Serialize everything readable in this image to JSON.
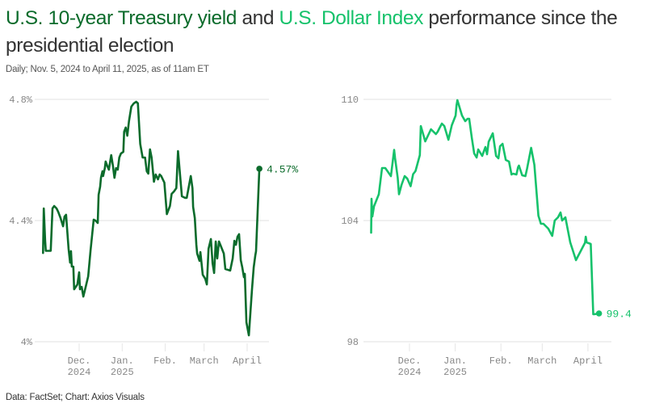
{
  "header": {
    "title_part1": "U.S. 10-year Treasury yield",
    "title_part2": " and ",
    "title_part3": "U.S. Dollar Index",
    "title_part4": " performance since the presidential election",
    "subtitle": "Daily; Nov. 5, 2024 to April 11, 2025, as of 11am ET"
  },
  "footer": {
    "source": "Data: FactSet; Chart: Axios Visuals"
  },
  "colors": {
    "treasury": "#0b6b2b",
    "dollar": "#16c26b",
    "grid": "#e6e6e6",
    "tick_text": "#888888"
  },
  "chart_data": [
    {
      "type": "line",
      "title": "U.S. 10-year Treasury yield",
      "xlabel": "",
      "ylabel": "",
      "x_unit": "days since Nov. 5, 2024",
      "xlim": [
        0,
        157
      ],
      "ylim": [
        4.0,
        4.8
      ],
      "yticks": [
        {
          "value": 4.8,
          "label": "4.8%"
        },
        {
          "value": 4.4,
          "label": "4.4%"
        },
        {
          "value": 4.0,
          "label": "4%"
        }
      ],
      "xticks": [
        {
          "value": 26,
          "label1": "Dec.",
          "label2": "2024"
        },
        {
          "value": 57,
          "label1": "Jan.",
          "label2": "2025"
        },
        {
          "value": 88,
          "label1": "Feb.",
          "label2": ""
        },
        {
          "value": 116,
          "label1": "March",
          "label2": ""
        },
        {
          "value": 147,
          "label1": "April",
          "label2": ""
        }
      ],
      "grid": true,
      "end_label": "4.57%",
      "series": [
        {
          "name": "10-year Treasury yield",
          "x": [
            0,
            0.5,
            1.5,
            2,
            5.5,
            6.8,
            8,
            9.7,
            10.9,
            12.6,
            14.4,
            15.5,
            16.6,
            18.4,
            19.5,
            20.1,
            20.7,
            21.8,
            22.4,
            24.7,
            26,
            26.6,
            27.8,
            29,
            30.7,
            32.5,
            34.2,
            36.5,
            37.7,
            39.4,
            40,
            41.1,
            41.7,
            42.8,
            43.3,
            44.5,
            45.1,
            46.2,
            47.4,
            49.1,
            50.3,
            51.4,
            52.6,
            53.8,
            54.9,
            56.1,
            57.8,
            58.4,
            59.5,
            60.7,
            61.9,
            63.6,
            65.4,
            67.1,
            68.3,
            70,
            71.7,
            72.9,
            73.5,
            74.7,
            75.8,
            77,
            78.2,
            79.9,
            81.1,
            82.8,
            84,
            85.1,
            87.4,
            89.2,
            91.4,
            92.6,
            94.3,
            96,
            97.2,
            100,
            102.3,
            103.5,
            106.4,
            107.6,
            108.1,
            109.3,
            110.4,
            111,
            112.7,
            113.3,
            115,
            116.8,
            118,
            119.2,
            120.9,
            122.1,
            123.2,
            124.4,
            125.5,
            126.7,
            128.4,
            130.2,
            131.3,
            134.8,
            136.6,
            137.8,
            138.9,
            140.1,
            141.2,
            142.4,
            143.5,
            144.7,
            145.3,
            146.5,
            148.2,
            149.4,
            150.5,
            151.7,
            152.9,
            153.4,
            155.8
          ],
          "values": [
            4.293,
            4.44,
            4.333,
            4.3,
            4.3,
            4.44,
            4.448,
            4.44,
            4.429,
            4.408,
            4.381,
            4.413,
            4.419,
            4.307,
            4.261,
            4.299,
            4.248,
            4.248,
            4.173,
            4.189,
            4.229,
            4.173,
            4.181,
            4.149,
            4.181,
            4.216,
            4.301,
            4.403,
            4.4,
            4.392,
            4.485,
            4.512,
            4.541,
            4.563,
            4.547,
            4.573,
            4.595,
            4.581,
            4.568,
            4.616,
            4.581,
            4.541,
            4.573,
            4.568,
            4.608,
            4.621,
            4.627,
            4.693,
            4.707,
            4.68,
            4.728,
            4.776,
            4.787,
            4.792,
            4.787,
            4.653,
            4.608,
            4.608,
            4.608,
            4.563,
            4.555,
            4.635,
            4.608,
            4.528,
            4.552,
            4.536,
            4.552,
            4.547,
            4.525,
            4.421,
            4.448,
            4.488,
            4.496,
            4.507,
            4.629,
            4.48,
            4.475,
            4.475,
            4.547,
            4.507,
            4.445,
            4.408,
            4.32,
            4.291,
            4.267,
            4.296,
            4.221,
            4.208,
            4.189,
            4.307,
            4.339,
            4.259,
            4.227,
            4.331,
            4.275,
            4.331,
            4.312,
            4.291,
            4.24,
            4.235,
            4.275,
            4.333,
            4.32,
            4.347,
            4.355,
            4.269,
            4.245,
            4.213,
            4.224,
            4.064,
            4.021,
            4.099,
            4.173,
            4.245,
            4.285,
            4.299,
            4.571
          ]
        }
      ]
    },
    {
      "type": "line",
      "title": "U.S. Dollar Index",
      "xlabel": "",
      "ylabel": "",
      "x_unit": "days since Nov. 5, 2024",
      "xlim": [
        0,
        157
      ],
      "ylim": [
        98,
        110
      ],
      "yticks": [
        {
          "value": 110,
          "label": "110"
        },
        {
          "value": 104,
          "label": "104"
        },
        {
          "value": 98,
          "label": "98"
        }
      ],
      "xticks": [
        {
          "value": 26,
          "label1": "Dec.",
          "label2": "2024"
        },
        {
          "value": 57,
          "label1": "Jan.",
          "label2": "2025"
        },
        {
          "value": 88,
          "label1": "Feb.",
          "label2": ""
        },
        {
          "value": 116,
          "label1": "March",
          "label2": ""
        },
        {
          "value": 147,
          "label1": "April",
          "label2": ""
        }
      ],
      "grid": true,
      "end_label": "99.4",
      "series": [
        {
          "name": "U.S. Dollar Index",
          "x": [
            0,
            0.3,
            0.8,
            1.9,
            5.2,
            7.4,
            9.6,
            13.4,
            15.6,
            16.2,
            18,
            18.9,
            20.6,
            22.7,
            24.5,
            26.8,
            28.5,
            29.6,
            30.1,
            33,
            33.7,
            36.7,
            40.6,
            43.9,
            45.1,
            46.2,
            48,
            49.6,
            52.4,
            54.7,
            57.3,
            57.9,
            58.5,
            61.6,
            63.8,
            65.4,
            66.5,
            68.3,
            69.9,
            71.5,
            72.6,
            75.3,
            77.5,
            78.6,
            79.7,
            82.5,
            84.7,
            86.3,
            87.4,
            89.1,
            91.3,
            93.5,
            95.2,
            96.3,
            98.5,
            99.6,
            100.2,
            102.4,
            104.6,
            105.7,
            108.5,
            110.7,
            113.4,
            115.1,
            116.8,
            120.1,
            122.8,
            124.5,
            126.7,
            128.4,
            129.5,
            131.7,
            135,
            138.9,
            145,
            145.5,
            146.1,
            148.9,
            150.6,
            151.2,
            154.5
          ],
          "values": [
            103.4,
            105.08,
            104.2,
            104.7,
            105.3,
            106.6,
            106.6,
            106.2,
            107.5,
            107.1,
            106.12,
            105.3,
            105.76,
            106.2,
            106.08,
            105.7,
            106.3,
            106.4,
            106.46,
            107.24,
            108.68,
            107.92,
            108.52,
            108.28,
            108.4,
            108.56,
            108.8,
            108.68,
            108.0,
            108.72,
            109.2,
            109.7,
            109.96,
            109.2,
            108.92,
            109.04,
            109.04,
            108.08,
            107.32,
            107.12,
            107.52,
            107.2,
            107.64,
            107.28,
            107.9,
            108.32,
            107.2,
            107.08,
            107.68,
            107.8,
            107.0,
            106.92,
            106.28,
            106.32,
            106.28,
            106.64,
            106.72,
            106.24,
            106.2,
            106.56,
            107.6,
            106.76,
            104.24,
            103.84,
            103.84,
            103.6,
            103.24,
            104.0,
            104.16,
            104.4,
            104.0,
            104.16,
            102.92,
            102.04,
            102.9,
            103.2,
            102.92,
            102.84,
            99.36,
            99.36,
            99.4
          ]
        }
      ]
    }
  ]
}
